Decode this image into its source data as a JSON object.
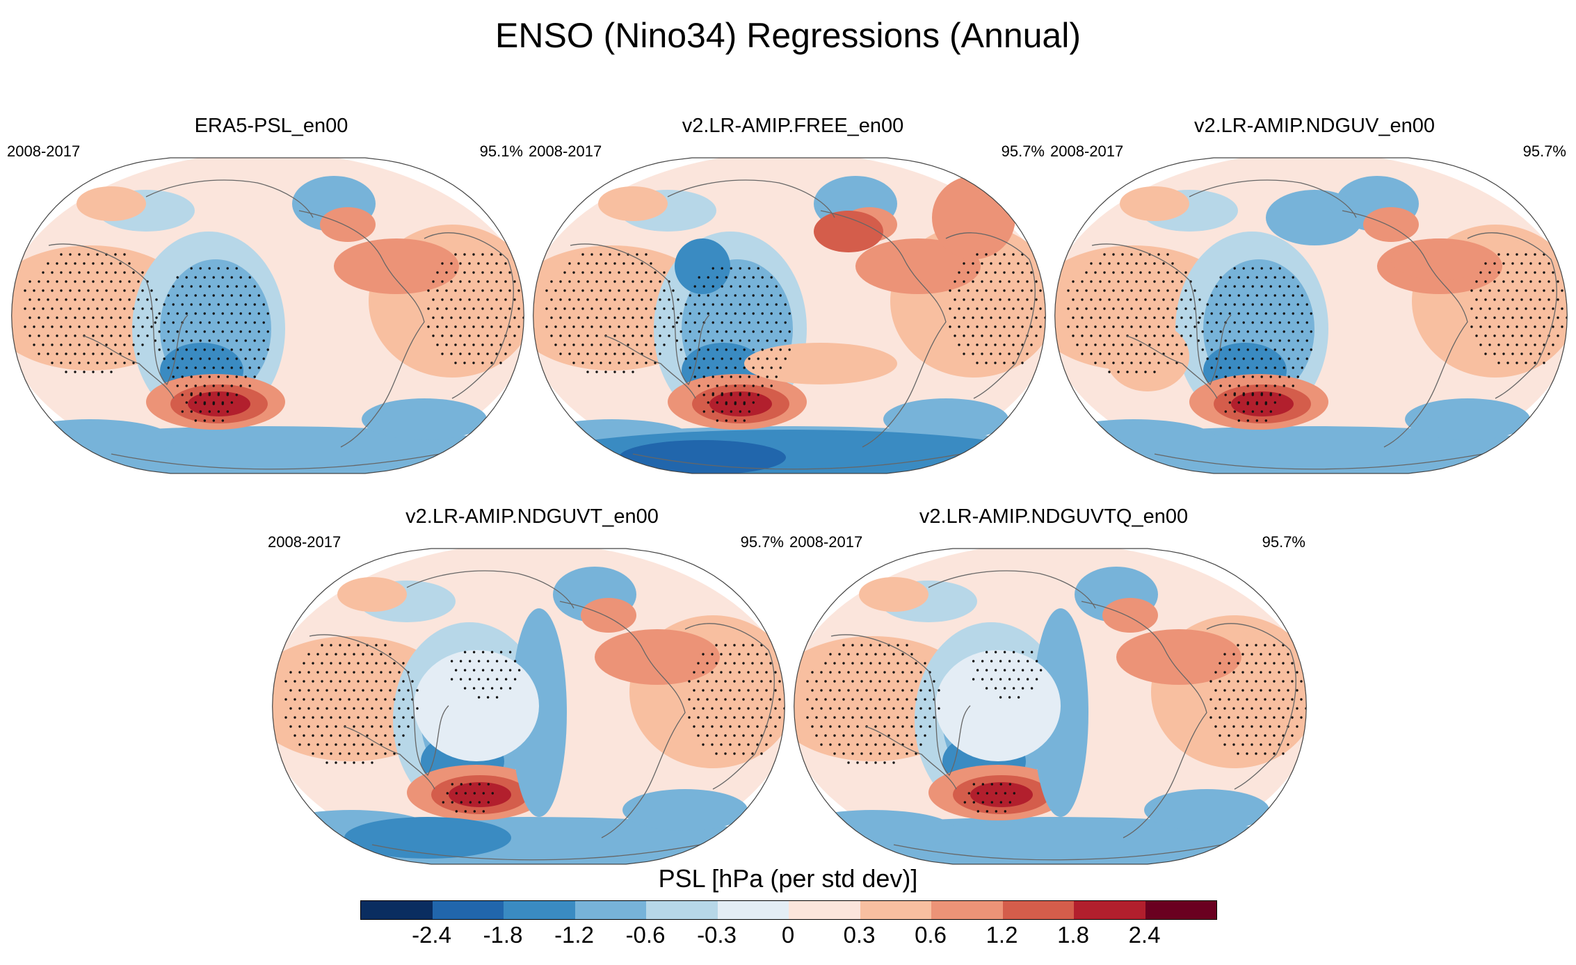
{
  "figure": {
    "title": "ENSO (Nino34) Regressions (Annual)"
  },
  "panels": [
    {
      "title": "ERA5-PSL_en00",
      "period": "2008-2017",
      "percent": "95.1%"
    },
    {
      "title": "v2.LR-AMIP.FREE_en00",
      "period": "2008-2017",
      "percent": "95.7%"
    },
    {
      "title": "v2.LR-AMIP.NDGUV_en00",
      "period": "2008-2017",
      "percent": "95.7%"
    },
    {
      "title": "v2.LR-AMIP.NDGUVT_en00",
      "period": "2008-2017",
      "percent": "95.7%"
    },
    {
      "title": "v2.LR-AMIP.NDGUVTQ_en00",
      "period": "2008-2017",
      "percent": "95.7%"
    }
  ],
  "colorbar": {
    "title": "PSL [hPa (per std dev)]",
    "colors": [
      "#0a2d60",
      "#2166ac",
      "#3a8bc2",
      "#77b3d9",
      "#b7d7e8",
      "#e4edf5",
      "#fbe5dc",
      "#f8bfa0",
      "#ec9377",
      "#d45d4b",
      "#b21f2d",
      "#6a0020"
    ],
    "ticks": [
      "-2.4",
      "-1.8",
      "-1.2",
      "-0.6",
      "-0.3",
      "0",
      "0.3",
      "0.6",
      "1.2",
      "1.8",
      "2.4"
    ]
  },
  "chart_data": {
    "type": "heatmap",
    "title": "ENSO (Nino34) Regressions (Annual)",
    "variable": "PSL [hPa (per std dev)]",
    "levels": [
      -2.4,
      -1.8,
      -1.2,
      -0.6,
      -0.3,
      0,
      0.3,
      0.6,
      1.2,
      1.8,
      2.4
    ],
    "projection": "Robinson, centered on Pacific",
    "stippling": "significant regions",
    "panels": [
      "ERA5-PSL_en00",
      "v2.LR-AMIP.FREE_en00",
      "v2.LR-AMIP.NDGUV_en00",
      "v2.LR-AMIP.NDGUVT_en00",
      "v2.LR-AMIP.NDGUVTQ_en00"
    ]
  }
}
